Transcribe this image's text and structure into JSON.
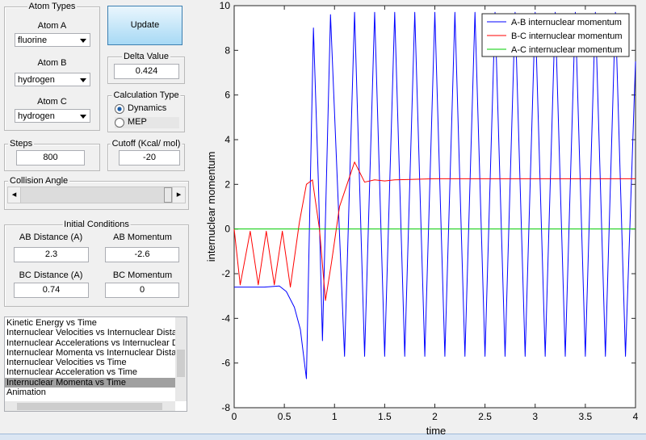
{
  "atom_types": {
    "title": "Atom Types",
    "atom_a": {
      "label": "Atom A",
      "value": "fluorine"
    },
    "atom_b": {
      "label": "Atom B",
      "value": "hydrogen"
    },
    "atom_c": {
      "label": "Atom C",
      "value": "hydrogen"
    }
  },
  "update_button": "Update",
  "delta_value": {
    "title": "Delta Value",
    "value": "0.424"
  },
  "calculation_type": {
    "title": "Calculation Type",
    "options": [
      "Dynamics",
      "MEP"
    ],
    "selected": 0
  },
  "steps": {
    "title": "Steps",
    "value": "800"
  },
  "cutoff": {
    "title": "Cutoff (Kcal/ mol)",
    "value": "-20"
  },
  "collision_angle": {
    "title": "Collision Angle"
  },
  "initial_conditions": {
    "title": "Initial Conditions",
    "ab_distance": {
      "label": "AB Distance (A)",
      "value": "2.3"
    },
    "ab_momentum": {
      "label": "AB Momentum",
      "value": "-2.6"
    },
    "bc_distance": {
      "label": "BC Distance (A)",
      "value": "0.74"
    },
    "bc_momentum": {
      "label": "BC Momentum",
      "value": "0"
    }
  },
  "plot_list": {
    "items": [
      "Kinetic Energy vs Time",
      "Internuclear Velocities vs Internuclear Distance",
      "Internuclear Accelerations vs Internuclear Distance",
      "Internuclear Momenta vs Internuclear Distance",
      "Internuclear Velocities vs Time",
      "Internuclear Acceleration vs Time",
      "Internuclear Momenta vs Time",
      "Animation"
    ],
    "selected": 6
  },
  "chart_data": {
    "type": "line",
    "x_label": "time",
    "y_label": "internuclear momentum",
    "xlim": [
      0,
      4
    ],
    "ylim": [
      -8,
      10
    ],
    "xticks": [
      0,
      0.5,
      1,
      1.5,
      2,
      2.5,
      3,
      3.5,
      4
    ],
    "yticks": [
      -8,
      -6,
      -4,
      -2,
      0,
      2,
      4,
      6,
      8,
      10
    ],
    "legend": "upper right",
    "series": [
      {
        "name": "A-B internuclear momentum",
        "color": "#0000ff",
        "x": [
          0,
          0.3,
          0.45,
          0.52,
          0.6,
          0.66,
          0.72,
          0.79,
          0.84,
          0.88,
          0.96,
          1.1,
          1.2,
          1.3,
          1.4,
          1.5,
          1.6,
          1.7,
          1.8,
          1.9,
          2.0,
          2.1,
          2.2,
          2.3,
          2.4,
          2.5,
          2.6,
          2.7,
          2.8,
          2.9,
          3.0,
          3.1,
          3.2,
          3.3,
          3.4,
          3.5,
          3.6,
          3.7,
          3.8,
          3.9,
          4.0
        ],
        "values": [
          -2.6,
          -2.6,
          -2.55,
          -2.8,
          -3.5,
          -4.5,
          -6.7,
          9.0,
          2.0,
          -5.0,
          9.6,
          -5.7,
          9.7,
          -5.7,
          9.7,
          -5.7,
          9.7,
          -5.7,
          9.7,
          -5.7,
          9.7,
          -5.7,
          9.7,
          -5.7,
          9.7,
          -5.7,
          9.7,
          -5.7,
          9.7,
          -5.7,
          9.7,
          -5.7,
          9.7,
          -5.7,
          9.7,
          -5.7,
          9.7,
          -5.7,
          9.7,
          -5.7,
          7.5
        ]
      },
      {
        "name": "B-C internuclear momentum",
        "color": "#ff0000",
        "x": [
          0,
          0.06,
          0.16,
          0.24,
          0.32,
          0.4,
          0.48,
          0.56,
          0.65,
          0.72,
          0.78,
          0.85,
          0.91,
          0.97,
          1.05,
          1.2,
          1.3,
          1.4,
          1.5,
          1.6,
          2.0,
          4.0
        ],
        "values": [
          0,
          -2.5,
          -0.1,
          -2.5,
          -0.1,
          -2.5,
          -0.1,
          -2.6,
          0.3,
          2.0,
          2.2,
          0,
          -3.2,
          -1.5,
          1.0,
          3.0,
          2.1,
          2.2,
          2.15,
          2.2,
          2.25,
          2.25
        ]
      },
      {
        "name": "A-C internuclear momentum",
        "color": "#00cc00",
        "x": [
          0,
          4
        ],
        "values": [
          0,
          0
        ]
      }
    ]
  }
}
